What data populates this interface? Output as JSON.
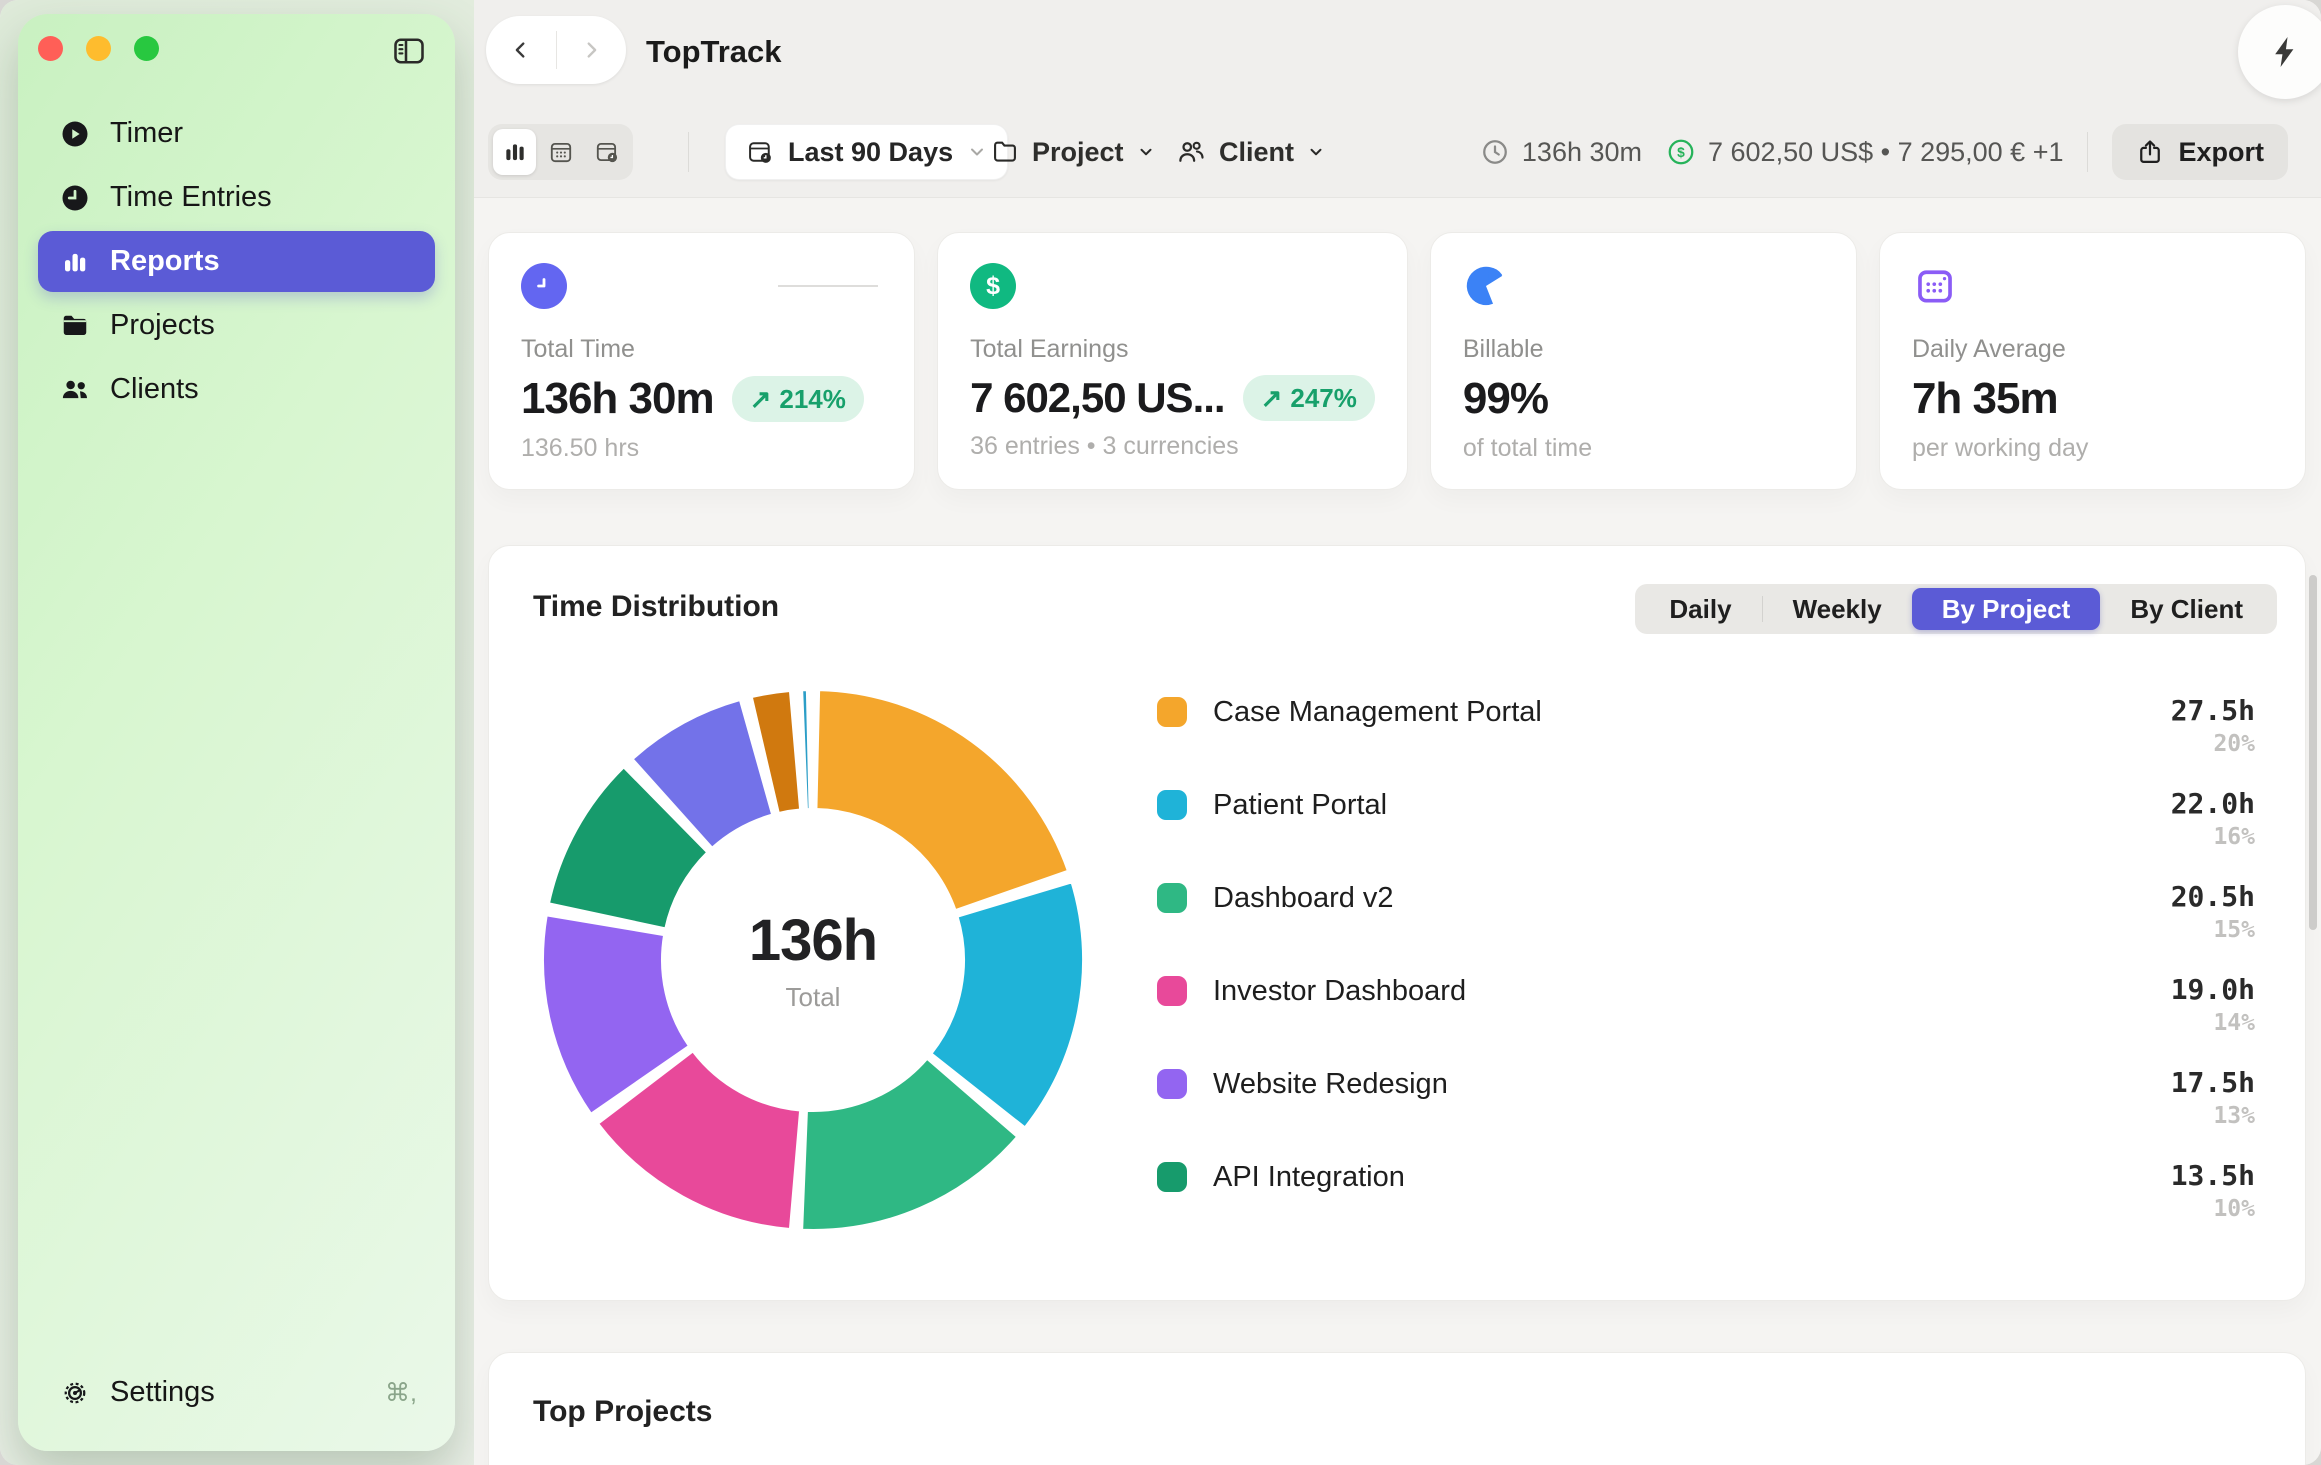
{
  "window": {
    "title": "TopTrack"
  },
  "icons": {
    "trend_up": "↗",
    "dollar": "$"
  },
  "sidebar": {
    "items": [
      {
        "label": "Timer"
      },
      {
        "label": "Time Entries"
      },
      {
        "label": "Reports",
        "active": true
      },
      {
        "label": "Projects"
      },
      {
        "label": "Clients"
      }
    ],
    "settings": {
      "label": "Settings",
      "shortcut": "⌘,"
    }
  },
  "toolbar": {
    "date_range": "Last 90 Days",
    "project_filter": "Project",
    "client_filter": "Client",
    "total_time": "136h 30m",
    "earnings": "7 602,50 US$ • 7 295,00 € +1",
    "export_label": "Export"
  },
  "stats": {
    "cards": [
      {
        "label": "Total Time",
        "value": "136h 30m",
        "badge": "214%",
        "sub": "136.50 hrs",
        "accent": "#6366F1"
      },
      {
        "label": "Total Earnings",
        "value": "7 602,50 US...",
        "badge": "247%",
        "sub": "36 entries • 3 currencies",
        "accent": "#10B981"
      },
      {
        "label": "Billable",
        "value": "99%",
        "sub": "of total time",
        "accent": "#3B82F6"
      },
      {
        "label": "Daily Average",
        "value": "7h 35m",
        "sub": "per working day",
        "accent": "#8B5CF6"
      }
    ]
  },
  "distribution": {
    "title": "Time Distribution",
    "tabs": [
      {
        "label": "Daily"
      },
      {
        "label": "Weekly"
      },
      {
        "label": "By Project",
        "active": true
      },
      {
        "label": "By Client"
      }
    ],
    "center_value": "136h",
    "center_label": "Total"
  },
  "chart_data": {
    "type": "pie",
    "title": "Time Distribution",
    "total_hours": 136.5,
    "center_value": "136h",
    "center_label": "Total",
    "legend_position": "right",
    "segments": [
      {
        "label": "Case Management Portal",
        "hours": "27.5h",
        "percent": "20%",
        "value": 20,
        "color": "#F4A62C"
      },
      {
        "label": "Patient Portal",
        "hours": "22.0h",
        "percent": "16%",
        "value": 16,
        "color": "#1FB3D8"
      },
      {
        "label": "Dashboard v2",
        "hours": "20.5h",
        "percent": "15%",
        "value": 15,
        "color": "#2FB884"
      },
      {
        "label": "Investor Dashboard",
        "hours": "19.0h",
        "percent": "14%",
        "value": 14,
        "color": "#E8499A"
      },
      {
        "label": "Website Redesign",
        "hours": "17.5h",
        "percent": "13%",
        "value": 13,
        "color": "#9365F1"
      },
      {
        "label": "API Integration",
        "hours": "13.5h",
        "percent": "10%",
        "value": 10,
        "color": "#179B6C"
      },
      {
        "label": "",
        "hours": "",
        "percent": "",
        "value": 8,
        "color": "#7372E9"
      },
      {
        "label": "",
        "hours": "",
        "percent": "",
        "value": 3,
        "color": "#D0790F"
      },
      {
        "label": "",
        "hours": "",
        "percent": "",
        "value": 1,
        "color": "#2C9EC7"
      }
    ]
  },
  "top_projects": {
    "title": "Top Projects"
  }
}
